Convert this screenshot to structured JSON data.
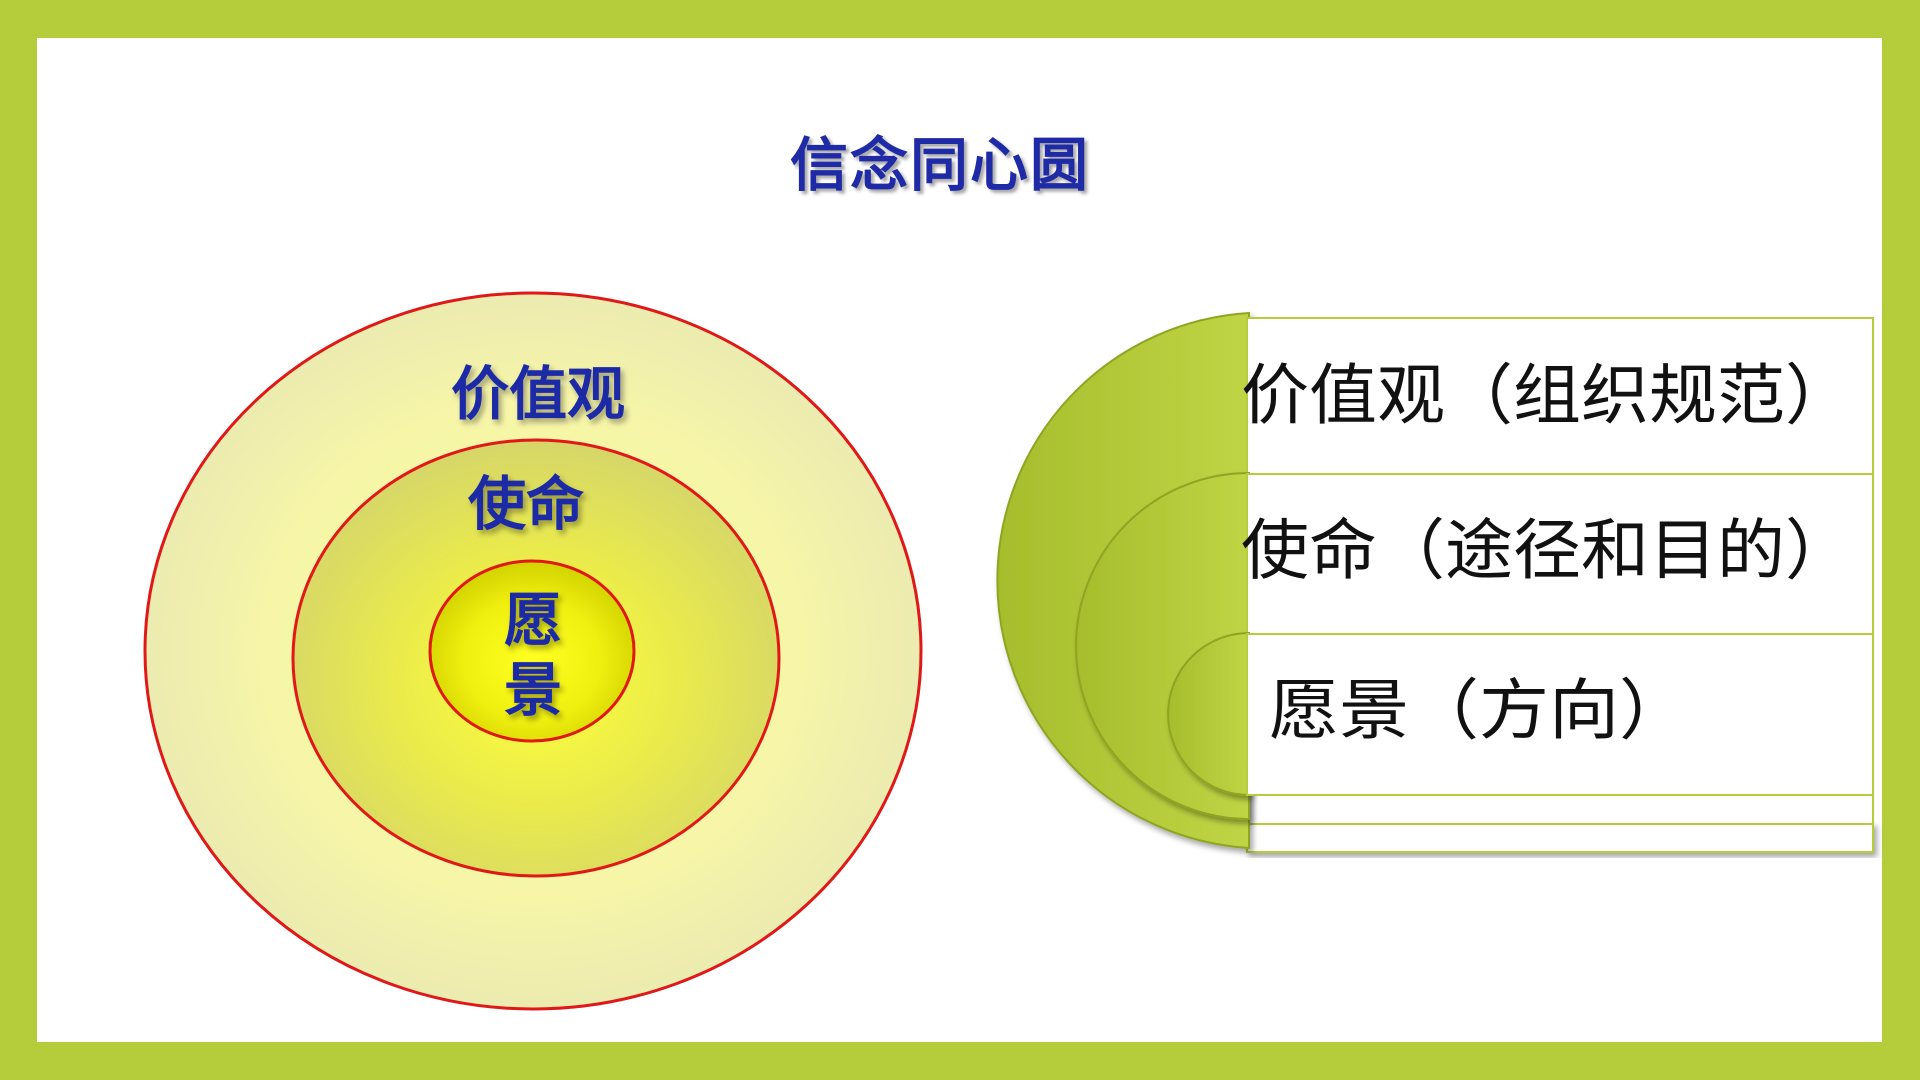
{
  "slide": {
    "title": "信念同心圆"
  },
  "left_diagram": {
    "outer_label": "价值观",
    "middle_label": "使命",
    "inner_label_line1": "愿",
    "inner_label_line2": "景"
  },
  "right_diagram": {
    "rows": [
      {
        "label": "价值观（组织规范）"
      },
      {
        "label": "使命（途径和目的）"
      },
      {
        "label": "愿景（方向）"
      }
    ]
  },
  "colors": {
    "frame": "#b5cc3b",
    "title": "#1f2aa6",
    "ring_stroke": "#e01818",
    "arc_fill": "#b5cc3b"
  }
}
